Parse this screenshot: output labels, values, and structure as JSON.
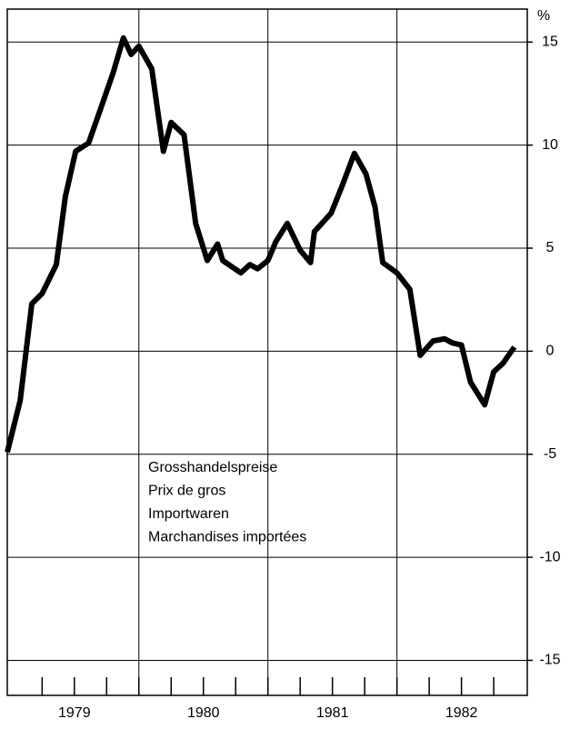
{
  "chart_data": {
    "type": "line",
    "unit_label": "%",
    "annotations": [
      "Grosshandelspreise",
      "Prix de gros",
      "Importwaren",
      "Marchandises importées"
    ],
    "categories": [
      "1979",
      "1980",
      "1981",
      "1982"
    ],
    "x": [
      1978.98,
      1979.08,
      1979.17,
      1979.25,
      1979.36,
      1979.43,
      1979.51,
      1979.61,
      1979.7,
      1979.8,
      1979.88,
      1979.94,
      1980.0,
      1980.1,
      1980.19,
      1980.25,
      1980.35,
      1980.44,
      1980.53,
      1980.61,
      1980.65,
      1980.79,
      1980.86,
      1980.92,
      1981.0,
      1981.06,
      1981.15,
      1981.25,
      1981.33,
      1981.36,
      1981.49,
      1981.58,
      1981.67,
      1981.76,
      1981.83,
      1981.89,
      1982.0,
      1982.1,
      1982.14,
      1982.18,
      1982.28,
      1982.37,
      1982.43,
      1982.5,
      1982.57,
      1982.68,
      1982.75,
      1982.82,
      1982.91
    ],
    "series": [
      {
        "color": "#000000",
        "values": [
          -4.9,
          -2.4,
          2.3,
          2.8,
          4.2,
          7.5,
          9.7,
          10.1,
          11.7,
          13.5,
          15.2,
          14.4,
          14.8,
          13.7,
          9.7,
          11.1,
          10.5,
          6.2,
          4.4,
          5.2,
          4.4,
          3.8,
          4.2,
          4.0,
          4.4,
          5.3,
          6.2,
          4.9,
          4.3,
          5.8,
          6.7,
          8.1,
          9.6,
          8.6,
          7.0,
          4.3,
          3.8,
          3.0,
          1.4,
          -0.2,
          0.5,
          0.6,
          0.4,
          0.3,
          -1.5,
          -2.6,
          -1.0,
          -0.6,
          0.2
        ]
      }
    ],
    "xlim": [
      1978.98,
      1983.01
    ],
    "xticks": [
      1979.25,
      1979.5,
      1979.75,
      1980,
      1980.25,
      1980.5,
      1980.75,
      1981,
      1981.25,
      1981.5,
      1981.75,
      1982,
      1982.25,
      1982.5,
      1982.75
    ],
    "xgrid": [
      1980,
      1981,
      1982
    ],
    "ylim": [
      -16.7,
      16.6
    ],
    "yticks": [
      15,
      10,
      5,
      0,
      -5,
      -10,
      -15
    ],
    "grid": true
  }
}
